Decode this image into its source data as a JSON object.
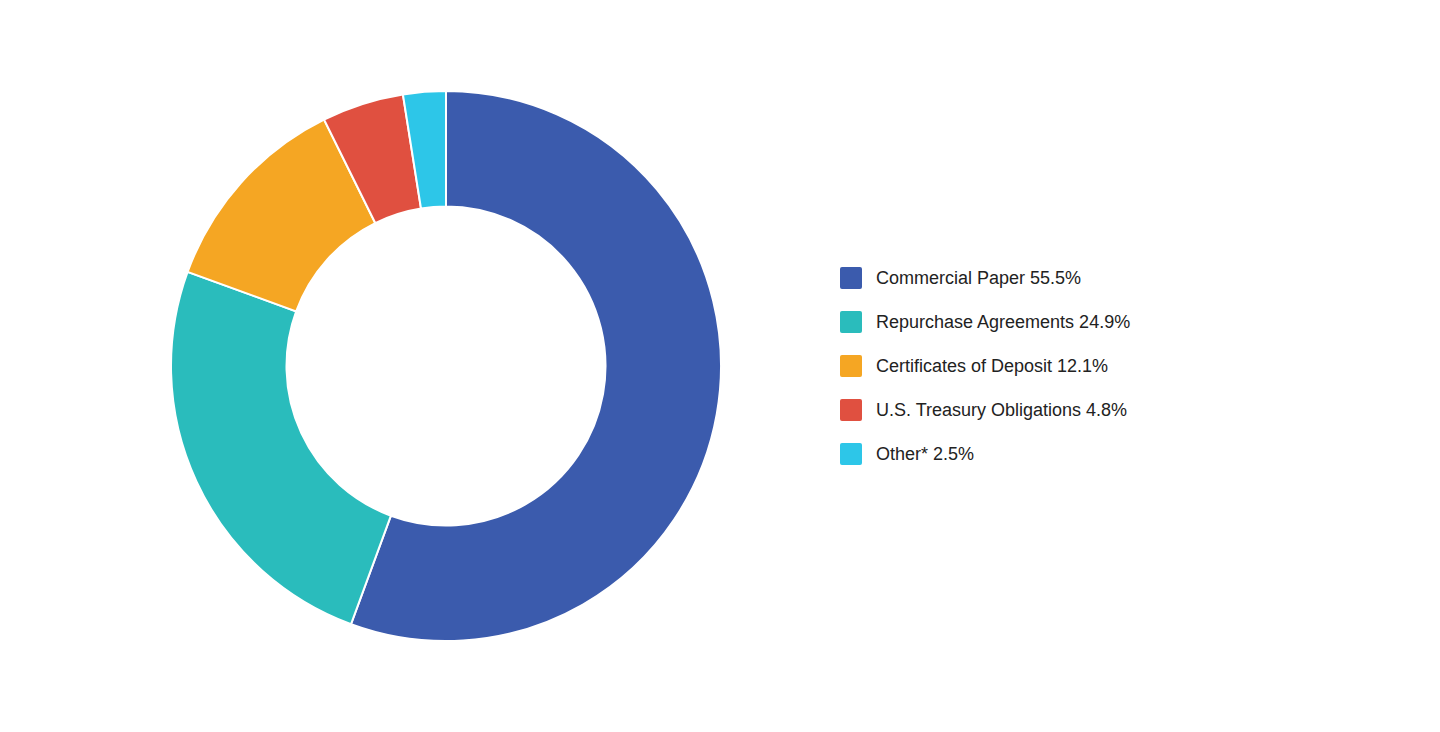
{
  "chart_data": {
    "type": "pie",
    "categories": [
      "Commercial Paper 55.5%",
      "Repurchase Agreements 24.9%",
      "Certificates of Deposit 12.1%",
      "U.S. Treasury Obligations 4.8%",
      "Other* 2.5%"
    ],
    "values": [
      55.5,
      24.9,
      12.1,
      4.8,
      2.5
    ],
    "colors": [
      "#3B5BAD",
      "#2ABCBC",
      "#F5A623",
      "#E05040",
      "#2DC6E8"
    ],
    "legend": "right"
  }
}
